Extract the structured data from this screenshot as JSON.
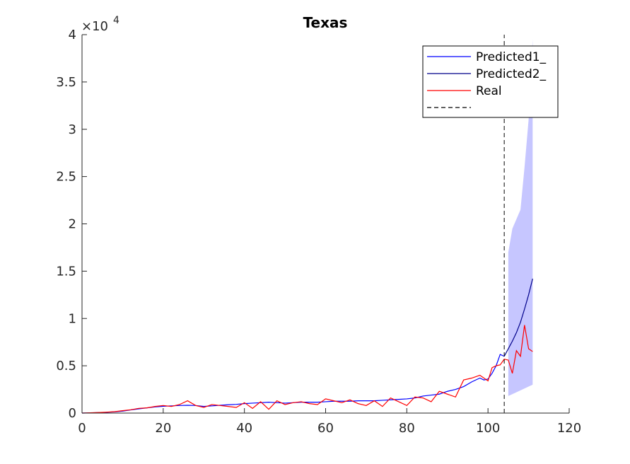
{
  "chart_data": {
    "type": "line",
    "title": "Texas",
    "xlabel": "",
    "ylabel": "",
    "xlim": [
      0,
      120
    ],
    "ylim": [
      0,
      40000
    ],
    "x_ticks": [
      0,
      20,
      40,
      60,
      80,
      100,
      120
    ],
    "x_tick_labels": [
      "0",
      "20",
      "40",
      "60",
      "80",
      "100",
      "120"
    ],
    "y_ticks": [
      0,
      5000,
      10000,
      15000,
      20000,
      25000,
      30000,
      35000,
      40000
    ],
    "y_tick_labels": [
      "0",
      "0.5",
      "1",
      "1.5",
      "2",
      "2.5",
      "3",
      "3.5",
      "4"
    ],
    "y_exponent_base": "×10",
    "y_exponent_power": "4",
    "grid": false,
    "legend_position": "top-right",
    "legend": [
      "Predicted1_",
      "Predicted2_",
      "Real",
      ""
    ],
    "colors": {
      "predicted1": "#0000ff",
      "predicted2": "#00008b",
      "real": "#ff0000",
      "divider": "#000000",
      "band": "#8080ff"
    },
    "divider_x": 104,
    "band": {
      "x": [
        105,
        106,
        107,
        108,
        109,
        110,
        111
      ],
      "upper": [
        17000,
        19500,
        20500,
        21500,
        26000,
        31000,
        39500
      ],
      "lower": [
        1800,
        2000,
        2200,
        2400,
        2600,
        2800,
        3000
      ]
    },
    "series": [
      {
        "name": "Predicted1_",
        "x": [
          0,
          2,
          4,
          6,
          8,
          10,
          12,
          14,
          16,
          18,
          20,
          22,
          24,
          26,
          28,
          30,
          32,
          34,
          36,
          38,
          40,
          42,
          44,
          46,
          48,
          50,
          52,
          54,
          56,
          58,
          60,
          62,
          64,
          66,
          68,
          70,
          72,
          74,
          76,
          78,
          80,
          82,
          84,
          86,
          88,
          90,
          92,
          94,
          96,
          98,
          99,
          100,
          101,
          102,
          103,
          104
        ],
        "values": [
          0,
          20,
          50,
          80,
          130,
          200,
          330,
          450,
          550,
          650,
          720,
          760,
          800,
          820,
          800,
          700,
          760,
          820,
          880,
          920,
          1000,
          1050,
          1100,
          1150,
          1100,
          1050,
          1100,
          1150,
          1150,
          1150,
          1200,
          1250,
          1250,
          1250,
          1300,
          1300,
          1300,
          1350,
          1400,
          1450,
          1500,
          1600,
          1800,
          1900,
          2000,
          2300,
          2500,
          2800,
          3300,
          3700,
          3500,
          3600,
          4200,
          5000,
          6200,
          6000
        ]
      },
      {
        "name": "Predicted2_",
        "x": [
          104,
          105,
          106,
          107,
          108,
          109,
          110,
          111
        ],
        "values": [
          6000,
          6800,
          7600,
          8500,
          9600,
          11000,
          12500,
          14200
        ]
      },
      {
        "name": "Real",
        "x": [
          0,
          2,
          4,
          6,
          8,
          10,
          12,
          14,
          16,
          18,
          20,
          22,
          24,
          26,
          28,
          30,
          32,
          34,
          36,
          38,
          40,
          42,
          44,
          46,
          48,
          50,
          52,
          54,
          56,
          58,
          60,
          62,
          64,
          66,
          68,
          70,
          72,
          74,
          76,
          78,
          80,
          82,
          84,
          86,
          88,
          90,
          92,
          94,
          96,
          98,
          100,
          101,
          102,
          103,
          104,
          105,
          106,
          107,
          108,
          109,
          110,
          111
        ],
        "values": [
          0,
          30,
          60,
          100,
          150,
          250,
          350,
          500,
          550,
          700,
          800,
          700,
          900,
          1300,
          800,
          600,
          900,
          800,
          700,
          600,
          1100,
          500,
          1200,
          400,
          1300,
          900,
          1100,
          1200,
          1000,
          900,
          1500,
          1300,
          1100,
          1400,
          1000,
          800,
          1300,
          700,
          1600,
          1200,
          800,
          1700,
          1600,
          1200,
          2300,
          2000,
          1700,
          3500,
          3700,
          4000,
          3400,
          4800,
          5000,
          5100,
          5700,
          5600,
          4200,
          6600,
          6000,
          9300,
          6800,
          6500
        ]
      },
      {
        "name": "",
        "style": "dashed",
        "x": [
          104,
          104
        ],
        "values": [
          0,
          40000
        ]
      }
    ]
  }
}
